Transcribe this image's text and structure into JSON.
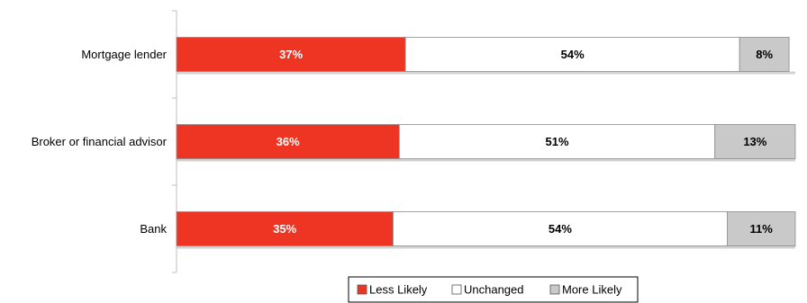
{
  "chart_data": {
    "type": "bar",
    "orientation": "horizontal",
    "stacked": true,
    "categories": [
      "Mortgage lender",
      "Broker or financial advisor",
      "Bank"
    ],
    "series": [
      {
        "name": "Less Likely",
        "values": [
          37,
          36,
          35
        ],
        "labels": [
          "37%",
          "36%",
          "35%"
        ],
        "color": "#ee3524",
        "label_color": "#ffffff"
      },
      {
        "name": "Unchanged",
        "values": [
          54,
          51,
          54
        ],
        "labels": [
          "54%",
          "51%",
          "54%"
        ],
        "color": "#ffffff",
        "label_color": "#000000"
      },
      {
        "name": "More Likely",
        "values": [
          8,
          13,
          11
        ],
        "labels": [
          "8%",
          "13%",
          "11%"
        ],
        "color": "#c9c9c9",
        "label_color": "#000000"
      }
    ],
    "xlim": [
      0,
      100
    ],
    "grid": false,
    "legend_position": "bottom"
  }
}
